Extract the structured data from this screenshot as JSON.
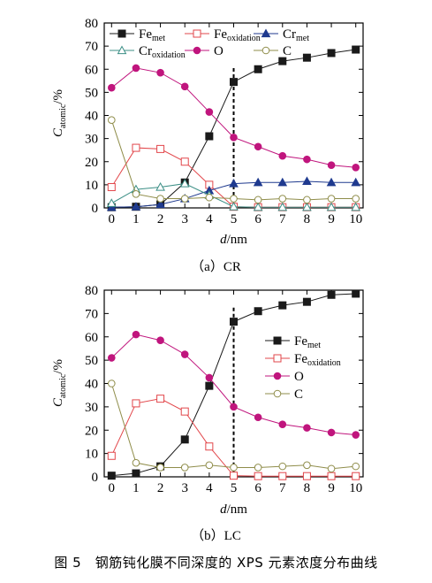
{
  "figure": {
    "caption": "图 5　钢筋钝化膜不同深度的 XPS 元素浓度分布曲线"
  },
  "colors": {
    "fe_met": "#1a1a1a",
    "fe_oxidation": "#e2474b",
    "cr_met": "#1f3a8f",
    "cr_oxidation": "#3c8f86",
    "o": "#c0157d",
    "c": "#8f8d4a"
  },
  "chart_data": [
    {
      "type": "line",
      "panel_caption": "（a）CR",
      "xlabel_var": "d",
      "xlabel_unit": "/nm",
      "ylabel_var": "C",
      "ylabel_sub": "atomic",
      "ylabel_unit": "/%",
      "xlim": [
        -0.3,
        10.3
      ],
      "ylim": [
        0,
        80
      ],
      "xticks": [
        0,
        1,
        2,
        3,
        4,
        5,
        6,
        7,
        8,
        9,
        10
      ],
      "yticks": [
        0,
        10,
        20,
        30,
        40,
        50,
        60,
        70,
        80
      ],
      "x": [
        0,
        1,
        2,
        3,
        4,
        5,
        6,
        7,
        8,
        9,
        10
      ],
      "vline_x": 5,
      "legend_layout": "top-rows",
      "series": [
        {
          "id": "fe_met",
          "name": "Fe",
          "sub": "met",
          "marker": "square-filled",
          "values": [
            0.3,
            0.5,
            1.5,
            11,
            31,
            54.5,
            60,
            63.5,
            65,
            67,
            68.5
          ]
        },
        {
          "id": "fe_oxidation",
          "name": "Fe",
          "sub": "oxidation",
          "marker": "square-open",
          "values": [
            9,
            26,
            25.5,
            20,
            10,
            0.5,
            0.3,
            0.3,
            0.3,
            0.3,
            0.3
          ]
        },
        {
          "id": "cr_met",
          "name": "Cr",
          "sub": "met",
          "marker": "triangle-filled",
          "values": [
            0.3,
            0.5,
            1.5,
            4,
            7.5,
            10.5,
            11,
            11,
            11.5,
            11,
            11
          ]
        },
        {
          "id": "cr_oxidation",
          "name": "Cr",
          "sub": "oxidation",
          "marker": "triangle-open",
          "values": [
            2,
            8,
            9,
            10.5,
            5.5,
            0.5,
            0.3,
            0.3,
            0.3,
            0.3,
            0.3
          ]
        },
        {
          "id": "o",
          "name": "O",
          "sub": "",
          "marker": "circle-filled",
          "values": [
            52,
            60.5,
            58.5,
            52.5,
            41.5,
            30.5,
            26.5,
            22.5,
            21,
            18.5,
            17.5
          ]
        },
        {
          "id": "c",
          "name": "C",
          "sub": "",
          "marker": "circle-open",
          "values": [
            38,
            6,
            4,
            4,
            4.5,
            4,
            3.5,
            4,
            3.5,
            4,
            4
          ]
        }
      ]
    },
    {
      "type": "line",
      "panel_caption": "（b）LC",
      "xlabel_var": "d",
      "xlabel_unit": "/nm",
      "ylabel_var": "C",
      "ylabel_sub": "atomic",
      "ylabel_unit": "/%",
      "xlim": [
        -0.3,
        10.3
      ],
      "ylim": [
        0,
        80
      ],
      "xticks": [
        0,
        1,
        2,
        3,
        4,
        5,
        6,
        7,
        8,
        9,
        10
      ],
      "yticks": [
        0,
        10,
        20,
        30,
        40,
        50,
        60,
        70,
        80
      ],
      "x": [
        0,
        1,
        2,
        3,
        4,
        5,
        6,
        7,
        8,
        9,
        10
      ],
      "vline_x": 5,
      "legend_layout": "right-column",
      "series": [
        {
          "id": "fe_met",
          "name": "Fe",
          "sub": "met",
          "marker": "square-filled",
          "values": [
            0.5,
            1.5,
            4.5,
            16,
            39,
            66.5,
            71,
            73.5,
            75,
            78,
            78.5
          ]
        },
        {
          "id": "fe_oxidation",
          "name": "Fe",
          "sub": "oxidation",
          "marker": "square-open",
          "values": [
            9,
            31.5,
            33.5,
            28,
            13,
            0.5,
            0.3,
            0.3,
            0.3,
            0.3,
            0.3
          ]
        },
        {
          "id": "o",
          "name": "O",
          "sub": "",
          "marker": "circle-filled",
          "values": [
            51,
            61,
            58.5,
            52.5,
            42.5,
            30,
            25.5,
            22.5,
            21,
            19,
            18
          ]
        },
        {
          "id": "c",
          "name": "C",
          "sub": "",
          "marker": "circle-open",
          "values": [
            40,
            6,
            4,
            4,
            5,
            4,
            4,
            4.5,
            5,
            3.5,
            4.5
          ]
        }
      ]
    }
  ]
}
